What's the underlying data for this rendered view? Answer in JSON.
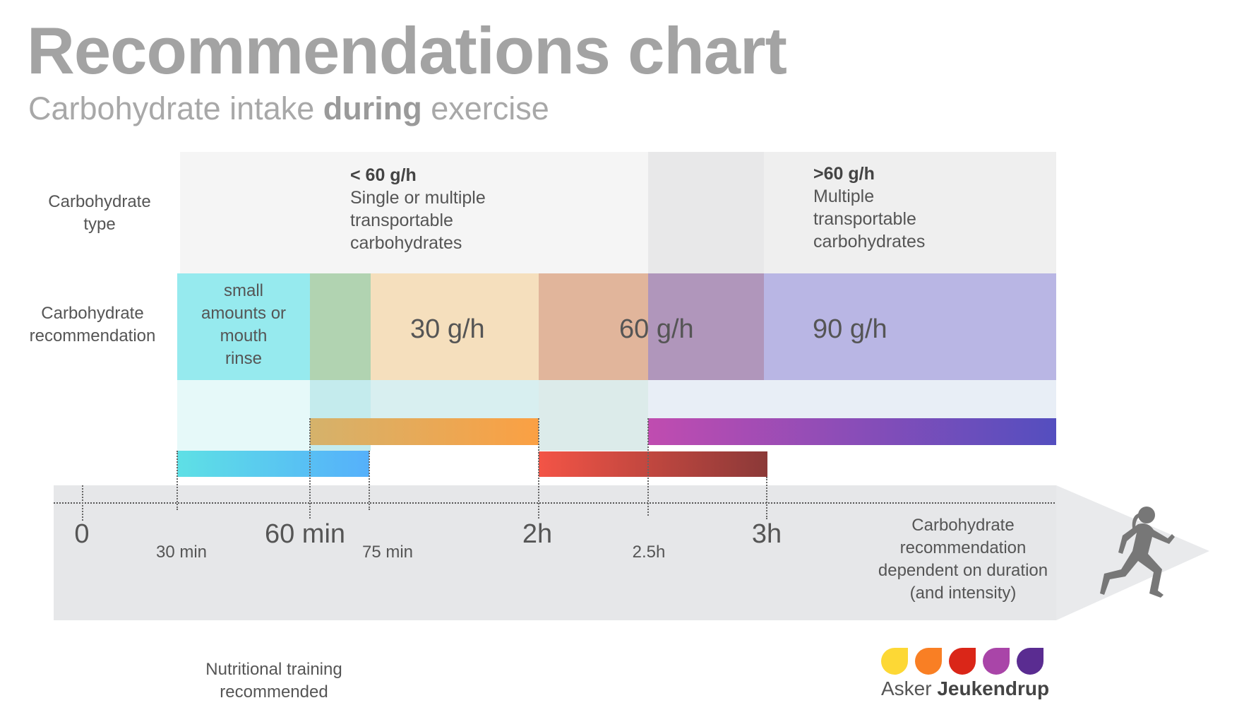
{
  "title": "Recommendations chart",
  "subtitle": {
    "pre": "Carbohydrate intake ",
    "bold": "during",
    "post": " exercise"
  },
  "row_labels": {
    "type": [
      "Carbohydrate",
      "type"
    ],
    "recommendation": [
      "Carbohydrate",
      "recommendation"
    ]
  },
  "carb_types": [
    {
      "heading": "< 60 g/h",
      "lines": [
        "Single or multiple",
        "transportable",
        "carbohydrates"
      ]
    },
    {
      "heading": ">60 g/h",
      "lines": [
        "Multiple",
        "transportable",
        "carbohydrates"
      ]
    }
  ],
  "recommendations": {
    "small": [
      "small",
      "amounts or",
      "mouth",
      "rinse"
    ],
    "r30": "30 g/h",
    "r60": "60 g/h",
    "r90": "90 g/h"
  },
  "timeline": {
    "major_ticks": [
      "0",
      "60 min",
      "2h",
      "3h"
    ],
    "minor_ticks": [
      "30 min",
      "75 min",
      "2.5h"
    ],
    "note": [
      "Carbohydrate",
      "recommendation",
      "dependent on duration",
      "(and intensity)"
    ]
  },
  "footnote": [
    "Nutritional training",
    "recommended"
  ],
  "logo": {
    "first": "Asker",
    "last": "Jeukendrup",
    "colors": [
      "#fdd835",
      "#f97f24",
      "#da2618",
      "#a945a8",
      "#5a2c91"
    ]
  },
  "colors": {
    "small": "#96eaee",
    "overlap_green": "#b1d3b1",
    "r30": "#f5dfbd",
    "r60": "#e1b59b",
    "overlap_purple": "#b096bb",
    "r90": "#b9b6e4",
    "bar_blue": [
      "#5ee0e5",
      "#55b0fb"
    ],
    "bar_orange": [
      "#d5b26b",
      "#fba043"
    ],
    "bar_red": [
      "#f35446",
      "#8b3938"
    ],
    "bar_purple": [
      "#c04cb0",
      "#544ebf"
    ]
  }
}
